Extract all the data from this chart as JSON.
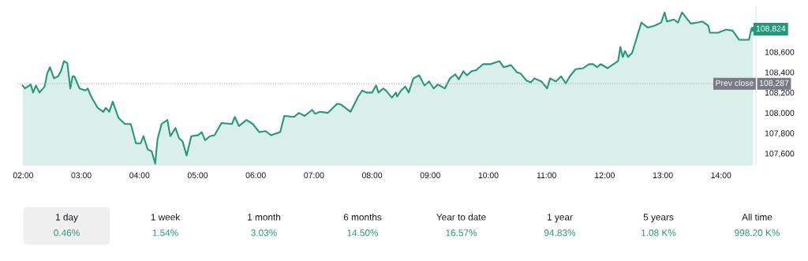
{
  "chart_data": [
    {
      "type": "area",
      "series": [
        {
          "color": "#22997a",
          "x": [
            1.99,
            2.03,
            2.13,
            2.17,
            2.22,
            2.28,
            2.37,
            2.41,
            2.46,
            2.53,
            2.6,
            2.65,
            2.7,
            2.76,
            2.81,
            2.85,
            2.88,
            2.97,
            3.07,
            3.11,
            3.17,
            3.28,
            3.38,
            3.42,
            3.48,
            3.54,
            3.64,
            3.75,
            3.85,
            3.94,
            4.02,
            4.07,
            4.14,
            4.21,
            4.27,
            4.31,
            4.38,
            4.48,
            4.53,
            4.62,
            4.68,
            4.74,
            4.81,
            4.89,
            5.01,
            5.07,
            5.13,
            5.21,
            5.29,
            5.41,
            5.59,
            5.64,
            5.71,
            5.84,
            5.95,
            6.06,
            6.17,
            6.26,
            6.42,
            6.49,
            6.66,
            6.74,
            6.84,
            6.97,
            7.02,
            7.1,
            7.24,
            7.4,
            7.47,
            7.63,
            7.76,
            7.83,
            7.9,
            8.0,
            8.07,
            8.11,
            8.19,
            8.24,
            8.34,
            8.41,
            8.43,
            8.5,
            8.57,
            8.63,
            8.71,
            8.81,
            8.9,
            8.98,
            9.06,
            9.13,
            9.25,
            9.34,
            9.43,
            9.49,
            9.57,
            9.63,
            9.71,
            9.79,
            9.91,
            10.04,
            10.19,
            10.26,
            10.39,
            10.49,
            10.55,
            10.65,
            10.73,
            10.79,
            10.91,
            11.01,
            11.06,
            11.16,
            11.25,
            11.33,
            11.4,
            11.5,
            11.63,
            11.73,
            11.8,
            11.87,
            11.93,
            12.05,
            12.23,
            12.27,
            12.31,
            12.35,
            12.4,
            12.47,
            12.54,
            12.63,
            12.74,
            12.86,
            12.97,
            13.03,
            13.07,
            13.19,
            13.26,
            13.33,
            13.41,
            13.48,
            13.6,
            13.68,
            13.78,
            13.81,
            13.95,
            14.08,
            14.2,
            14.31,
            14.48,
            14.52,
            14.55
          ],
          "values": [
            108270,
            108240,
            108280,
            108200,
            108270,
            108200,
            108260,
            108380,
            108450,
            108340,
            108360,
            108410,
            108510,
            108490,
            108240,
            108360,
            108360,
            108240,
            108220,
            108240,
            108160,
            108050,
            108010,
            108050,
            108010,
            108110,
            107950,
            107890,
            107890,
            107700,
            107700,
            107770,
            107640,
            107620,
            107500,
            107740,
            107890,
            107930,
            107770,
            107850,
            107750,
            107720,
            107580,
            107770,
            107780,
            107810,
            107730,
            107770,
            107780,
            107900,
            107890,
            107960,
            107870,
            107930,
            107890,
            107810,
            107820,
            107780,
            107810,
            107970,
            107960,
            108000,
            107970,
            108030,
            107990,
            108010,
            108000,
            108090,
            108080,
            108010,
            108160,
            108220,
            108200,
            108200,
            108270,
            108200,
            108240,
            108220,
            108150,
            108200,
            108160,
            108220,
            108260,
            108200,
            108340,
            108370,
            108270,
            108310,
            108240,
            108280,
            108240,
            108340,
            108380,
            108330,
            108410,
            108370,
            108410,
            108420,
            108480,
            108480,
            108510,
            108450,
            108470,
            108400,
            108390,
            108320,
            108300,
            108340,
            108310,
            108240,
            108340,
            108310,
            108360,
            108290,
            108360,
            108430,
            108440,
            108480,
            108480,
            108450,
            108480,
            108440,
            108510,
            108650,
            108550,
            108610,
            108550,
            108590,
            108720,
            108890,
            108840,
            108860,
            108890,
            108990,
            108900,
            108920,
            108890,
            108990,
            108930,
            108880,
            108890,
            108900,
            108860,
            108790,
            108790,
            108820,
            108810,
            108720,
            108720,
            108820,
            108824
          ]
        }
      ],
      "xlim": [
        1.9,
        14.6
      ],
      "ylim": [
        107480,
        109050
      ],
      "xticks": [
        {
          "value": 2,
          "label": "02:00"
        },
        {
          "value": 3,
          "label": "03:00"
        },
        {
          "value": 4,
          "label": "04:00"
        },
        {
          "value": 5,
          "label": "05:00"
        },
        {
          "value": 6,
          "label": "06:00"
        },
        {
          "value": 7,
          "label": "07:00"
        },
        {
          "value": 8,
          "label": "08:00"
        },
        {
          "value": 9,
          "label": "09:00"
        },
        {
          "value": 10,
          "label": "10:00"
        },
        {
          "value": 11,
          "label": "11:00"
        },
        {
          "value": 12,
          "label": "12:00"
        },
        {
          "value": 13,
          "label": "13:00"
        },
        {
          "value": 14,
          "label": "14:00"
        }
      ],
      "yticks": [
        {
          "value": 107600,
          "label": "107,600"
        },
        {
          "value": 107800,
          "label": "107,800"
        },
        {
          "value": 108000,
          "label": "108,000"
        },
        {
          "value": 108200,
          "label": "108,200"
        },
        {
          "value": 108400,
          "label": "108,400"
        },
        {
          "value": 108600,
          "label": "108,600"
        }
      ],
      "ref_lines": [
        {
          "axis": "y",
          "value": 108287,
          "label": "Prev close",
          "color": "#b2b5be",
          "line_style": "dotted"
        }
      ],
      "annotations": [
        {
          "text": "108,824",
          "x": 14.55,
          "y": 108824
        },
        {
          "text": "108,287",
          "y": 108287
        }
      ],
      "grid": false,
      "legend": false
    },
    {
      "type": "other",
      "annotations": [
        "1 day",
        "0.46%",
        "1 week",
        "1.54%",
        "1 month",
        "3.03%",
        "6 months",
        "14.50%",
        "Year to date",
        "16.57%",
        "1 year",
        "94.83%",
        "5 years",
        "1.08 K%",
        "All time",
        "998.20 K%"
      ]
    }
  ]
}
